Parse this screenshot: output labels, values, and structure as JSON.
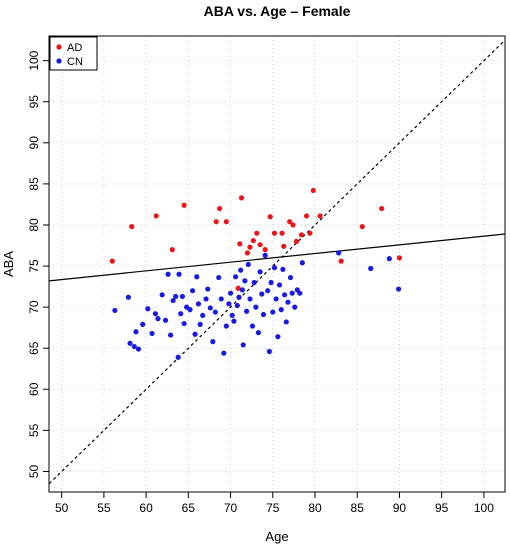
{
  "chart_data": {
    "type": "scatter",
    "title": "ABA vs. Age – Female",
    "xlabel": "Age",
    "ylabel": "ABA",
    "xlim": [
      48.5,
      102.5
    ],
    "ylim": [
      47.5,
      103
    ],
    "xticks": [
      50,
      55,
      60,
      65,
      70,
      75,
      80,
      85,
      90,
      95,
      100
    ],
    "yticks": [
      50,
      55,
      60,
      65,
      70,
      75,
      80,
      85,
      90,
      95,
      100
    ],
    "grid": true,
    "legend_position": "top-left",
    "identity_line": {
      "style": "dashed",
      "color": "#000000"
    },
    "regression_line": {
      "points": [
        [
          48.5,
          73.2
        ],
        [
          102.5,
          78.9
        ]
      ],
      "color": "#000000"
    },
    "series": [
      {
        "name": "AD",
        "color": "#e8161b",
        "points": [
          [
            56.0,
            75.6
          ],
          [
            58.3,
            79.8
          ],
          [
            61.2,
            81.1
          ],
          [
            63.1,
            77.0
          ],
          [
            64.5,
            82.4
          ],
          [
            68.3,
            80.4
          ],
          [
            68.7,
            82.0
          ],
          [
            69.5,
            80.4
          ],
          [
            70.9,
            72.3
          ],
          [
            71.1,
            77.7
          ],
          [
            71.3,
            83.3
          ],
          [
            72.0,
            76.6
          ],
          [
            72.3,
            77.3
          ],
          [
            72.7,
            78.1
          ],
          [
            73.1,
            79.0
          ],
          [
            73.5,
            77.6
          ],
          [
            74.1,
            77.0
          ],
          [
            74.7,
            81.0
          ],
          [
            75.2,
            79.0
          ],
          [
            76.1,
            79.0
          ],
          [
            76.3,
            77.4
          ],
          [
            77.0,
            80.4
          ],
          [
            77.4,
            80.0
          ],
          [
            77.8,
            78.0
          ],
          [
            78.4,
            78.8
          ],
          [
            79.0,
            81.1
          ],
          [
            79.4,
            79.0
          ],
          [
            79.8,
            84.2
          ],
          [
            80.6,
            81.1
          ],
          [
            83.1,
            75.6
          ],
          [
            85.6,
            79.8
          ],
          [
            87.9,
            82.0
          ],
          [
            90.0,
            76.0
          ]
        ]
      },
      {
        "name": "CN",
        "color": "#1a1ae0",
        "points": [
          [
            56.3,
            69.6
          ],
          [
            57.9,
            71.2
          ],
          [
            58.1,
            65.6
          ],
          [
            58.6,
            65.2
          ],
          [
            58.8,
            67.0
          ],
          [
            59.1,
            64.9
          ],
          [
            59.6,
            67.9
          ],
          [
            60.2,
            69.8
          ],
          [
            60.7,
            66.8
          ],
          [
            61.1,
            69.2
          ],
          [
            61.4,
            68.6
          ],
          [
            61.9,
            71.5
          ],
          [
            62.3,
            68.4
          ],
          [
            62.6,
            74.0
          ],
          [
            62.9,
            66.6
          ],
          [
            63.2,
            70.8
          ],
          [
            63.5,
            71.3
          ],
          [
            63.8,
            63.9
          ],
          [
            63.9,
            74.0
          ],
          [
            64.1,
            69.2
          ],
          [
            64.3,
            71.3
          ],
          [
            64.5,
            68.0
          ],
          [
            64.8,
            70.0
          ],
          [
            65.2,
            69.7
          ],
          [
            65.5,
            72.0
          ],
          [
            65.8,
            66.7
          ],
          [
            66.0,
            73.7
          ],
          [
            66.2,
            70.4
          ],
          [
            66.4,
            67.9
          ],
          [
            66.7,
            69.0
          ],
          [
            67.1,
            71.0
          ],
          [
            67.3,
            72.2
          ],
          [
            67.6,
            69.9
          ],
          [
            67.9,
            65.8
          ],
          [
            68.2,
            69.4
          ],
          [
            68.6,
            73.6
          ],
          [
            68.9,
            71.0
          ],
          [
            69.2,
            64.4
          ],
          [
            69.5,
            67.7
          ],
          [
            69.8,
            70.4
          ],
          [
            70.0,
            71.7
          ],
          [
            70.2,
            69.0
          ],
          [
            70.4,
            68.3
          ],
          [
            70.6,
            73.7
          ],
          [
            70.8,
            70.2
          ],
          [
            71.0,
            71.2
          ],
          [
            71.2,
            74.5
          ],
          [
            71.4,
            72.1
          ],
          [
            71.5,
            65.4
          ],
          [
            71.7,
            73.2
          ],
          [
            71.9,
            69.5
          ],
          [
            72.1,
            75.2
          ],
          [
            72.3,
            71.0
          ],
          [
            72.6,
            67.7
          ],
          [
            72.8,
            73.0
          ],
          [
            73.0,
            70.0
          ],
          [
            73.3,
            66.9
          ],
          [
            73.5,
            74.3
          ],
          [
            73.7,
            71.6
          ],
          [
            73.9,
            69.1
          ],
          [
            74.1,
            76.3
          ],
          [
            74.4,
            72.0
          ],
          [
            74.6,
            64.6
          ],
          [
            74.8,
            73.0
          ],
          [
            75.0,
            69.4
          ],
          [
            75.2,
            74.8
          ],
          [
            75.4,
            71.0
          ],
          [
            75.6,
            66.4
          ],
          [
            75.8,
            72.7
          ],
          [
            76.0,
            69.7
          ],
          [
            76.2,
            74.6
          ],
          [
            76.4,
            71.5
          ],
          [
            76.6,
            68.2
          ],
          [
            76.8,
            70.6
          ],
          [
            77.1,
            73.6
          ],
          [
            77.3,
            71.7
          ],
          [
            77.6,
            70.0
          ],
          [
            77.9,
            72.1
          ],
          [
            78.2,
            71.7
          ],
          [
            78.5,
            75.4
          ],
          [
            82.8,
            76.6
          ],
          [
            86.6,
            74.7
          ],
          [
            88.8,
            75.9
          ],
          [
            89.9,
            72.2
          ]
        ]
      }
    ]
  }
}
